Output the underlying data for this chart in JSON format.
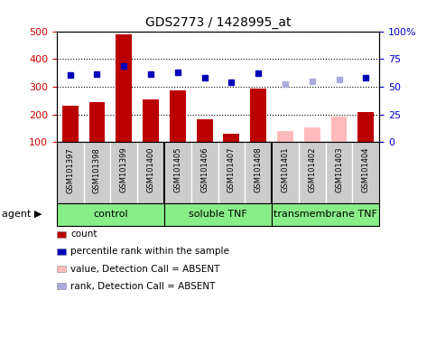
{
  "title": "GDS2773 / 1428995_at",
  "samples": [
    "GSM101397",
    "GSM101398",
    "GSM101399",
    "GSM101400",
    "GSM101405",
    "GSM101406",
    "GSM101407",
    "GSM101408",
    "GSM101401",
    "GSM101402",
    "GSM101403",
    "GSM101404"
  ],
  "counts": [
    232,
    244,
    490,
    256,
    287,
    184,
    130,
    293,
    null,
    null,
    null,
    210
  ],
  "counts_absent": [
    null,
    null,
    null,
    null,
    null,
    null,
    null,
    null,
    140,
    153,
    192,
    null
  ],
  "ranks": [
    342,
    346,
    374,
    345,
    352,
    332,
    317,
    349,
    null,
    null,
    null,
    332
  ],
  "ranks_absent": [
    null,
    null,
    null,
    null,
    null,
    null,
    null,
    null,
    311,
    319,
    325,
    null
  ],
  "bar_color_present": "#bb0000",
  "bar_color_absent": "#ffbbbb",
  "dot_color_present": "#0000bb",
  "dot_color_absent": "#aaaadd",
  "ylim_left": [
    100,
    500
  ],
  "ylim_right": [
    0,
    100
  ],
  "yticks_left": [
    100,
    200,
    300,
    400,
    500
  ],
  "yticks_right": [
    0,
    25,
    50,
    75,
    100
  ],
  "yticklabels_right": [
    "0",
    "25",
    "50",
    "75",
    "100%"
  ],
  "left_tick_color": "#cc0000",
  "right_tick_color": "#0000cc",
  "background_xaxis": "#cccccc",
  "group_color_light": "#aaffaa",
  "group_color_mid": "#66ee66",
  "group_color_dark": "#33dd33",
  "legend_items": [
    {
      "color": "#bb0000",
      "label": "count"
    },
    {
      "color": "#0000bb",
      "label": "percentile rank within the sample"
    },
    {
      "color": "#ffbbbb",
      "label": "value, Detection Call = ABSENT"
    },
    {
      "color": "#aaaadd",
      "label": "rank, Detection Call = ABSENT"
    }
  ],
  "group_labels": [
    "control",
    "soluble TNF",
    "transmembrane TNF"
  ],
  "group_starts": [
    0,
    4,
    8
  ],
  "group_ends": [
    3,
    7,
    11
  ],
  "group_color": "#88ee88"
}
